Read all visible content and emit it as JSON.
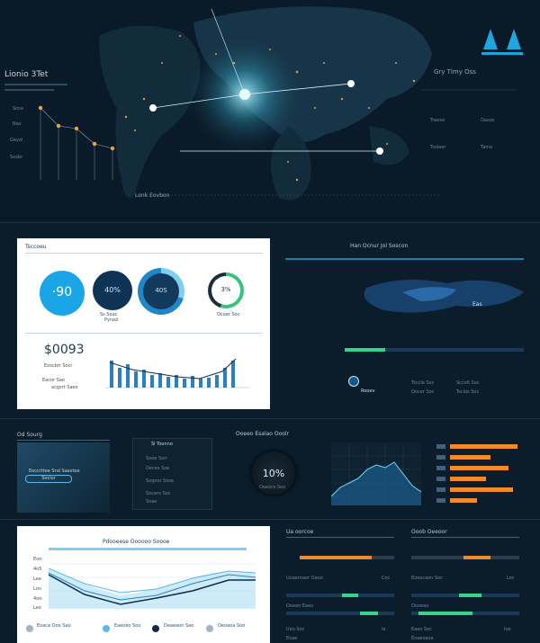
{
  "top": {
    "title": "Lionio 3Tet",
    "right_title": "Gry Tlmy Oss",
    "logo_icon": "mountain-logo-icon",
    "accent": "#19c3f0",
    "map_caption": "Lonk Eovbon",
    "left_labels": [
      "Sosa",
      "Nav",
      "Geyol",
      "Sosbr"
    ],
    "right_items": [
      "Tssose",
      "Oasos",
      "Tsoleer",
      "Tamo"
    ]
  },
  "panel1": {
    "header": "Tsccoeu",
    "gauge1": "·90",
    "gauge2": "40%",
    "gauge3": "40S",
    "gauge4": "3%",
    "gauge_caption_a": "Ss Soac",
    "gauge_caption_b": "Pyraoi",
    "gauge_caption_c": "Ocoer Soc",
    "price": "$0093",
    "price_sub_a": "Eoscbrr Socr",
    "price_sub_b": "Eacor Sao",
    "price_sub_c": "acgsrt Saeo"
  },
  "panel2": {
    "header": "Han Ocnur Jol Soscon",
    "region": "Eas",
    "badge": "Rooev",
    "rows": [
      "Tsccle Soc",
      "Sccelt Soc",
      "Oocer Soc",
      "Tsclos Soc"
    ]
  },
  "row3": {
    "left_title": "Od Sourg",
    "left_sub": "Eoccrttee Snd Sasotoe",
    "left_btn": "Soclor",
    "mid_title": "Sl Toonno",
    "mid_items": [
      "Sooe Sorr",
      "Oeces Soe",
      "Soqeor Sose",
      "Socero Soc",
      "Soae"
    ],
    "dial_title": "Ooeeo Esalao Ooolr",
    "dial_value": "10%",
    "dial_caption": "Oaeora Soo"
  },
  "panel4": {
    "header": "Pdooeese Oooooo Soooe",
    "yticks": [
      "Eoo",
      "4o5",
      "Lea",
      "Lon",
      "4oo",
      "Leo"
    ],
    "legend": [
      "Eoaca Ooo Sao",
      "Eaeoeo Soo",
      "Deaeaon Sao",
      "Oeoaoa Soo"
    ],
    "chart_colors": [
      "#2a7fc0",
      "#5cb8e6",
      "#9ed9f2",
      "#0f2a4c"
    ]
  },
  "panel5": {
    "left_header": "Ua oorcoe",
    "right_header": "Ooob Oeeoor",
    "left_rows": [
      "Uoaeroaor Oaoo",
      "Ooeeo Eaeo",
      "Ueo Soc"
    ],
    "right_rows": [
      "Eoeocaon Soc",
      "Oooeao",
      "Eaeo Soc"
    ],
    "val_a": "Coc",
    "val_b": "Loc",
    "val_c": "Ie",
    "val_d": "Ioo",
    "val_e": "Eoae",
    "val_f": "Eoaeoaoa"
  }
}
